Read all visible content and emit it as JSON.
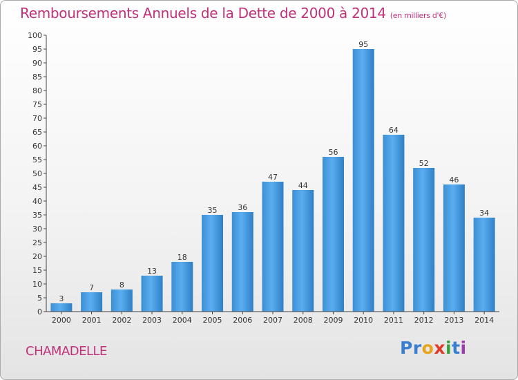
{
  "chart_data": {
    "type": "bar",
    "title": "Remboursements Annuels de la Dette de 2000 à 2014",
    "subtitle": "(en milliers d'€)",
    "categories": [
      "2000",
      "2001",
      "2002",
      "2003",
      "2004",
      "2005",
      "2006",
      "2007",
      "2008",
      "2009",
      "2010",
      "2011",
      "2012",
      "2013",
      "2014"
    ],
    "values": [
      3,
      7,
      8,
      13,
      18,
      35,
      36,
      47,
      44,
      56,
      95,
      64,
      52,
      46,
      34
    ],
    "ylim": [
      0,
      100
    ],
    "yticks": [
      0,
      5,
      10,
      15,
      20,
      25,
      30,
      35,
      40,
      45,
      50,
      55,
      60,
      65,
      70,
      75,
      80,
      85,
      90,
      95,
      100
    ],
    "xlabel": "",
    "ylabel": "",
    "grid": false,
    "bar_color": "#4a9fe0"
  },
  "footer": {
    "commune": "CHAMADELLE",
    "logo_parts": [
      "Pr",
      "o",
      "x",
      "i",
      "t",
      "i"
    ]
  }
}
